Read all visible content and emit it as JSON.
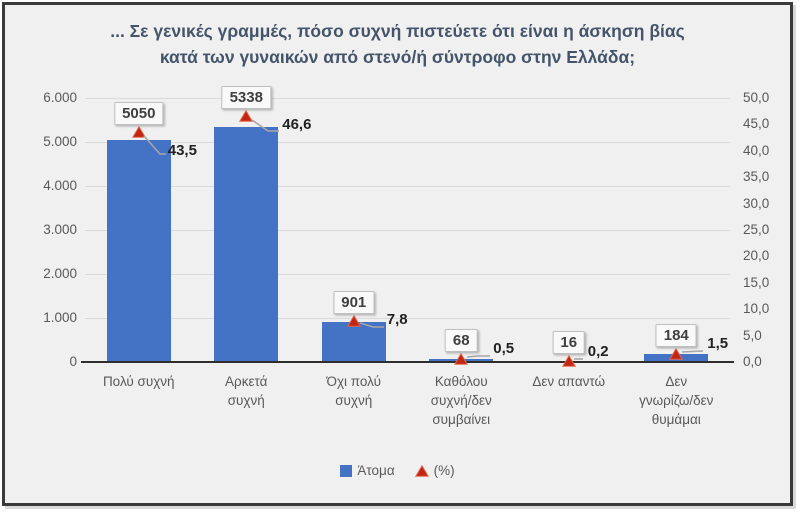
{
  "frame": {
    "background": "#F0F0F0",
    "border_color": "#3A3A3A"
  },
  "chart_data": {
    "type": "bar",
    "title": "... Σε γενικές γραμμές, πόσο συχνή πιστεύετε ότι είναι η άσκηση βίας κατά των γυναικών από στενό/ή σύντροφο στην Ελλάδα;",
    "title_lines": [
      "... Σε γενικές γραμμές, πόσο συχνή πιστεύετε ότι είναι η άσκηση βίας",
      "κατά των γυναικών από στενό/ή σύντροφο στην Ελλάδα;"
    ],
    "title_color": "#44546A",
    "categories": [
      "Πολύ συχνή",
      "Αρκετά συχνή",
      "Όχι πολύ συχνή",
      "Καθόλου συχνή/δεν συμβαίνει",
      "Δεν απαντώ",
      "Δεν γνωρίζω/δεν θυμάμαι"
    ],
    "category_label_lines": [
      "Πολύ συχνή",
      "Αρκετά\nσυχνή",
      "Όχι πολύ\nσυχνή",
      "Καθόλου\nσυχνή/δεν\nσυμβαίνει",
      "Δεν απαντώ",
      "Δεν\nγνωρίζω/δεν\nθυμάμαι"
    ],
    "series": [
      {
        "name": "Άτομα",
        "type": "bar",
        "axis": "left",
        "color": "#4472C4",
        "values": [
          5050,
          5338,
          901,
          68,
          16,
          184
        ],
        "data_labels": [
          "5050",
          "5338",
          "901",
          "68",
          "16",
          "184"
        ]
      },
      {
        "name": "(%)",
        "type": "triangle-marker",
        "axis": "right",
        "color": "#C02612",
        "marker_edge_color": "#E2654B",
        "values": [
          43.5,
          46.6,
          7.8,
          0.5,
          0.2,
          1.5
        ],
        "data_labels": [
          "43,5",
          "46,6",
          "7,8",
          "0,5",
          "0,2",
          "1,5"
        ]
      }
    ],
    "left_axis": {
      "min": 0,
      "max": 6000,
      "step": 1000,
      "tick_labels": [
        "0",
        "1.000",
        "2.000",
        "3.000",
        "4.000",
        "5.000",
        "6.000"
      ]
    },
    "right_axis": {
      "min": 0,
      "max": 50,
      "step": 5,
      "tick_labels": [
        "0,0",
        "5,0",
        "10,0",
        "15,0",
        "20,0",
        "25,0",
        "30,0",
        "35,0",
        "40,0",
        "45,0",
        "50,0"
      ]
    },
    "grid": true,
    "gridline_color": "#DADADA",
    "legend": {
      "position": "bottom",
      "items": [
        {
          "label": "Άτομα",
          "swatch": "square",
          "color": "#4472C4"
        },
        {
          "label": "(%)",
          "swatch": "triangle",
          "color": "#C02612"
        }
      ]
    }
  }
}
